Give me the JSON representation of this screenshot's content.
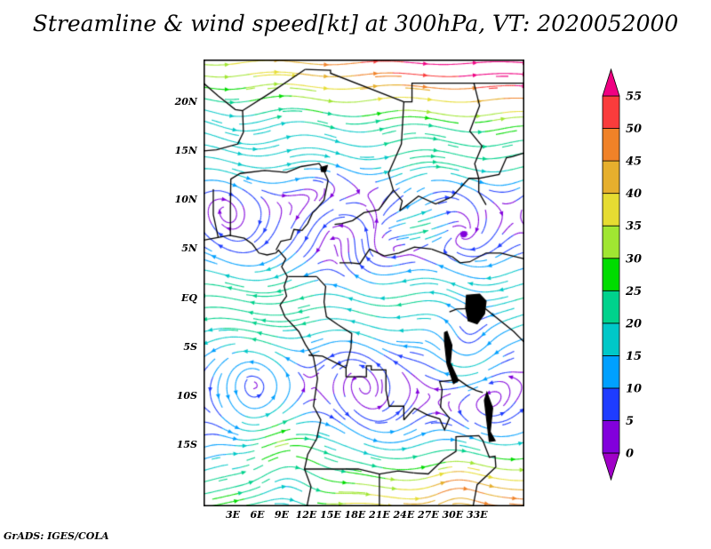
{
  "footer": "GrADS: IGES/COLA",
  "chart_data": {
    "type": "streamline",
    "title": "Streamline & wind speed[kt] at 300hPa, VT: 2020052000",
    "variable": "wind speed",
    "units": "kt",
    "level": "300hPa",
    "valid_time": "2020052000",
    "x_axis": {
      "lon_range": [
        -0.6,
        38.8
      ],
      "ticks": [
        {
          "label": "3E",
          "lon": 3
        },
        {
          "label": "6E",
          "lon": 6
        },
        {
          "label": "9E",
          "lon": 9
        },
        {
          "label": "12E",
          "lon": 12
        },
        {
          "label": "15E",
          "lon": 15
        },
        {
          "label": "18E",
          "lon": 18
        },
        {
          "label": "21E",
          "lon": 21
        },
        {
          "label": "24E",
          "lon": 24
        },
        {
          "label": "27E",
          "lon": 27
        },
        {
          "label": "30E",
          "lon": 30
        },
        {
          "label": "33E",
          "lon": 33
        }
      ]
    },
    "y_axis": {
      "lat_range": [
        -21.2,
        24.3
      ],
      "ticks": [
        {
          "label": "20N",
          "lat": 20
        },
        {
          "label": "15N",
          "lat": 15
        },
        {
          "label": "10N",
          "lat": 10
        },
        {
          "label": "5N",
          "lat": 5
        },
        {
          "label": "EQ",
          "lat": 0
        },
        {
          "label": "5S",
          "lat": -5
        },
        {
          "label": "10S",
          "lat": -10
        },
        {
          "label": "15S",
          "lat": -15
        }
      ]
    },
    "colorbar": {
      "levels": [
        0,
        5,
        10,
        15,
        20,
        25,
        30,
        35,
        40,
        45,
        50,
        55
      ],
      "colors": [
        "#a000c8",
        "#8200dc",
        "#1e3cff",
        "#00a0ff",
        "#00c8c8",
        "#00d28c",
        "#00dc00",
        "#a0e632",
        "#e6dc32",
        "#e6af2d",
        "#f08228",
        "#fa3c3c",
        "#f00082"
      ]
    },
    "wind_field": {
      "jets": [
        {
          "u0": 52,
          "lat0": 25.5,
          "width": 8,
          "lon_gain": 0.018,
          "lon_center": 19
        },
        {
          "u0": 14,
          "lat0": 13.5,
          "width": 3,
          "lon_gain": 0,
          "lon_center": 19
        },
        {
          "u0": -22,
          "lat0": -0.5,
          "width": 5.5,
          "lon_gain": -0.004,
          "lon_center": 19
        },
        {
          "u0": 40,
          "lat0": -23,
          "width": 8,
          "lon_gain": 0.015,
          "lon_center": 19
        }
      ],
      "streaks": [
        {
          "u": 24,
          "lon": 26,
          "lat": 7,
          "rlon": 4,
          "rlat": 2.5
        }
      ],
      "vortices": [
        {
          "lon": 9.8,
          "lat": -17.5,
          "r0": 3.0,
          "s": 16,
          "dir": -1
        },
        {
          "lon": 31.5,
          "lat": -5.0,
          "r0": 2.8,
          "s": 14,
          "dir": -1
        },
        {
          "lon": 30.5,
          "lat": -20.5,
          "r0": 2.0,
          "s": 12,
          "dir": -1
        },
        {
          "lon": 16.5,
          "lat": 7.0,
          "r0": 3.5,
          "s": 10,
          "dir": 1
        },
        {
          "lon": 6.0,
          "lat": -9.0,
          "r0": 3.0,
          "s": 8,
          "dir": 1
        }
      ],
      "meander": {
        "amp": 5,
        "wavelength": 14
      }
    },
    "map_outlines": [
      {
        "name": "coastline-west-africa",
        "points": [
          [
            -0.6,
            5.9
          ],
          [
            1.3,
            6.2
          ],
          [
            2.6,
            6.4
          ],
          [
            4.4,
            6.1
          ],
          [
            5.4,
            5.5
          ],
          [
            6.2,
            4.6
          ],
          [
            7.2,
            4.4
          ],
          [
            8.3,
            4.6
          ],
          [
            8.6,
            4.9
          ],
          [
            9.5,
            4.0
          ],
          [
            9.0,
            3.2
          ],
          [
            9.7,
            2.2
          ],
          [
            9.3,
            1.2
          ],
          [
            9.6,
            0.2
          ],
          [
            8.8,
            -0.7
          ],
          [
            9.4,
            -1.9
          ],
          [
            11.1,
            -3.4
          ],
          [
            11.9,
            -4.7
          ],
          [
            12.9,
            -6.0
          ],
          [
            13.4,
            -8.2
          ],
          [
            12.9,
            -11.0
          ],
          [
            13.8,
            -12.4
          ],
          [
            13.3,
            -14.3
          ],
          [
            12.2,
            -15.9
          ],
          [
            11.8,
            -17.4
          ],
          [
            12.6,
            -19.2
          ],
          [
            12.1,
            -21.2
          ]
        ]
      },
      {
        "name": "algeria-mali-niger",
        "points": [
          [
            -0.6,
            21.9
          ],
          [
            1.2,
            20.6
          ],
          [
            3.3,
            19.2
          ],
          [
            4.2,
            19.1
          ],
          [
            4.3,
            16.9
          ],
          [
            3.6,
            15.7
          ],
          [
            1.0,
            15.1
          ],
          [
            -0.6,
            15.0
          ]
        ]
      },
      {
        "name": "algeria-libya-border",
        "points": [
          [
            4.2,
            19.1
          ],
          [
            7.6,
            20.9
          ],
          [
            11.9,
            23.3
          ]
        ]
      },
      {
        "name": "libya-chad-border",
        "points": [
          [
            11.9,
            23.3
          ],
          [
            15.0,
            23.2
          ],
          [
            15.0,
            22.9
          ],
          [
            24.0,
            20.0
          ]
        ]
      },
      {
        "name": "egypt-sudan-border",
        "points": [
          [
            24.0,
            20.0
          ],
          [
            25.0,
            20.0
          ],
          [
            25.0,
            21.9
          ],
          [
            38.8,
            21.9
          ]
        ]
      },
      {
        "name": "chad-sudan-border",
        "points": [
          [
            24.0,
            20.0
          ],
          [
            23.7,
            15.7
          ],
          [
            22.9,
            14.2
          ],
          [
            22.1,
            12.7
          ],
          [
            22.7,
            11.0
          ],
          [
            23.8,
            9.9
          ],
          [
            23.5,
            8.9
          ]
        ]
      },
      {
        "name": "niger-nigeria-cameroon",
        "points": [
          [
            2.7,
            12.1
          ],
          [
            3.9,
            12.7
          ],
          [
            6.9,
            13.0
          ],
          [
            9.6,
            12.8
          ],
          [
            11.4,
            13.4
          ],
          [
            13.6,
            13.7
          ],
          [
            14.1,
            13.1
          ],
          [
            14.7,
            12.0
          ],
          [
            14.2,
            10.0
          ],
          [
            13.2,
            9.0
          ],
          [
            12.8,
            8.7
          ],
          [
            12.2,
            7.6
          ],
          [
            11.5,
            6.9
          ],
          [
            10.5,
            7.0
          ],
          [
            10.1,
            6.0
          ],
          [
            8.9,
            5.8
          ],
          [
            8.3,
            4.9
          ]
        ]
      },
      {
        "name": "benin-border",
        "points": [
          [
            2.75,
            12.1
          ],
          [
            2.7,
            9.1
          ],
          [
            2.7,
            6.3
          ]
        ]
      },
      {
        "name": "ghana-togo-border",
        "points": [
          [
            0.6,
            11.1
          ],
          [
            0.6,
            8.5
          ],
          [
            1.2,
            6.2
          ]
        ]
      },
      {
        "name": "chad-car-border",
        "points": [
          [
            15.5,
            7.5
          ],
          [
            16.4,
            7.6
          ],
          [
            17.7,
            7.9
          ],
          [
            19.1,
            8.7
          ],
          [
            20.9,
            9.0
          ],
          [
            22.7,
            11.0
          ]
        ]
      },
      {
        "name": "car-drc-border",
        "points": [
          [
            16.1,
            3.6
          ],
          [
            17.5,
            3.6
          ],
          [
            18.6,
            3.5
          ],
          [
            19.8,
            5.0
          ],
          [
            21.6,
            4.3
          ],
          [
            23.4,
            4.6
          ],
          [
            25.3,
            5.2
          ],
          [
            27.4,
            5.0
          ]
        ]
      },
      {
        "name": "south-sudan-uganda-kenya",
        "points": [
          [
            27.4,
            5.0
          ],
          [
            30.0,
            4.2
          ],
          [
            30.9,
            3.6
          ],
          [
            32.1,
            3.7
          ],
          [
            34.1,
            4.6
          ],
          [
            35.9,
            4.6
          ],
          [
            38.8,
            4.0
          ]
        ]
      },
      {
        "name": "car-south-sudan",
        "points": [
          [
            23.5,
            8.9
          ],
          [
            25.8,
            10.4
          ],
          [
            27.9,
            9.6
          ],
          [
            29.9,
            10.3
          ],
          [
            32.0,
            12.2
          ],
          [
            33.2,
            12.2
          ]
        ]
      },
      {
        "name": "cameroon-south-border",
        "points": [
          [
            9.8,
            2.2
          ],
          [
            13.3,
            2.2
          ]
        ]
      },
      {
        "name": "congo-drc-border",
        "points": [
          [
            13.3,
            2.2
          ],
          [
            14.4,
            1.2
          ],
          [
            14.2,
            -0.4
          ],
          [
            14.5,
            -1.9
          ],
          [
            15.9,
            -2.7
          ],
          [
            17.6,
            -3.6
          ],
          [
            17.5,
            -5.1
          ],
          [
            16.9,
            -7.1
          ]
        ]
      },
      {
        "name": "drc-angola-border",
        "points": [
          [
            12.3,
            -5.8
          ],
          [
            14.0,
            -5.9
          ],
          [
            16.9,
            -7.1
          ],
          [
            16.9,
            -8.0
          ],
          [
            19.4,
            -8.0
          ],
          [
            19.4,
            -6.9
          ],
          [
            20.0,
            -6.9
          ],
          [
            20.0,
            -7.3
          ],
          [
            21.8,
            -7.3
          ],
          [
            21.8,
            -9.4
          ],
          [
            22.2,
            -11.0
          ],
          [
            24.0,
            -11.0
          ],
          [
            24.0,
            -12.4
          ]
        ]
      },
      {
        "name": "zambia-drc-border",
        "points": [
          [
            24.0,
            -12.4
          ],
          [
            25.3,
            -11.2
          ],
          [
            26.9,
            -11.9
          ],
          [
            28.4,
            -12.3
          ],
          [
            29.0,
            -13.4
          ],
          [
            29.6,
            -12.2
          ],
          [
            28.5,
            -11.1
          ],
          [
            28.7,
            -9.3
          ],
          [
            28.4,
            -8.5
          ],
          [
            30.7,
            -8.3
          ]
        ]
      },
      {
        "name": "tanzania-zambia-border",
        "points": [
          [
            30.7,
            -8.3
          ],
          [
            31.9,
            -9.0
          ],
          [
            32.9,
            -9.4
          ],
          [
            33.7,
            -9.6
          ]
        ]
      },
      {
        "name": "uganda-tanzania-kenya",
        "points": [
          [
            29.6,
            -1.4
          ],
          [
            30.5,
            -1.1
          ],
          [
            33.9,
            -1.0
          ],
          [
            37.5,
            -3.4
          ],
          [
            38.8,
            -4.5
          ]
        ]
      },
      {
        "name": "ethiopia-sudan-border",
        "points": [
          [
            34.1,
            9.5
          ],
          [
            33.2,
            10.8
          ],
          [
            33.2,
            12.2
          ],
          [
            35.7,
            12.6
          ],
          [
            36.6,
            14.3
          ],
          [
            37.3,
            14.4
          ],
          [
            38.8,
            14.8
          ]
        ]
      },
      {
        "name": "nile-river",
        "points": [
          [
            32.6,
            21.9
          ],
          [
            33.3,
            19.6
          ],
          [
            32.1,
            17.0
          ],
          [
            33.6,
            15.5
          ],
          [
            32.7,
            13.7
          ],
          [
            33.2,
            12.2
          ]
        ]
      },
      {
        "name": "zambezi-region-borders",
        "points": [
          [
            25.2,
            -17.8
          ],
          [
            27.0,
            -17.9
          ],
          [
            28.9,
            -16.4
          ],
          [
            30.4,
            -15.6
          ],
          [
            30.4,
            -14.1
          ],
          [
            33.2,
            -14.0
          ],
          [
            33.7,
            -14.5
          ],
          [
            34.5,
            -16.2
          ],
          [
            35.2,
            -16.1
          ],
          [
            35.3,
            -17.2
          ],
          [
            33.0,
            -19.0
          ],
          [
            32.5,
            -21.2
          ]
        ]
      },
      {
        "name": "angola-namibia-border",
        "points": [
          [
            11.8,
            -17.4
          ],
          [
            13.9,
            -17.4
          ],
          [
            18.4,
            -17.4
          ],
          [
            21.0,
            -17.9
          ],
          [
            23.3,
            -17.6
          ],
          [
            25.2,
            -17.8
          ]
        ]
      },
      {
        "name": "namibia-botswana-border",
        "points": [
          [
            21.0,
            -17.9
          ],
          [
            21.0,
            -21.2
          ]
        ]
      },
      {
        "name": "lake-victoria",
        "fill": true,
        "points": [
          [
            31.7,
            0.3
          ],
          [
            33.3,
            0.4
          ],
          [
            34.1,
            -0.3
          ],
          [
            33.9,
            -1.6
          ],
          [
            33.0,
            -2.6
          ],
          [
            31.9,
            -2.3
          ],
          [
            31.6,
            -1.0
          ]
        ]
      },
      {
        "name": "lake-tanganyika",
        "fill": true,
        "points": [
          [
            29.3,
            -3.4
          ],
          [
            29.9,
            -4.8
          ],
          [
            29.7,
            -6.6
          ],
          [
            30.7,
            -8.4
          ],
          [
            30.1,
            -8.7
          ],
          [
            29.3,
            -6.7
          ],
          [
            29.0,
            -4.4
          ],
          [
            29.0,
            -3.5
          ]
        ]
      },
      {
        "name": "lake-malawi",
        "fill": true,
        "points": [
          [
            34.2,
            -9.6
          ],
          [
            34.9,
            -11.2
          ],
          [
            34.6,
            -13.6
          ],
          [
            35.2,
            -14.5
          ],
          [
            34.5,
            -14.6
          ],
          [
            34.2,
            -12.5
          ],
          [
            33.9,
            -10.4
          ]
        ]
      },
      {
        "name": "lake-chad",
        "fill": true,
        "points": [
          [
            13.8,
            13.3
          ],
          [
            14.6,
            13.5
          ],
          [
            14.4,
            12.9
          ],
          [
            13.9,
            12.9
          ]
        ]
      }
    ]
  }
}
